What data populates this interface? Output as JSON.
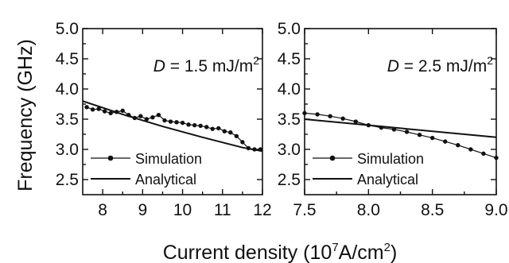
{
  "figure": {
    "ylabel": "Frequency (GHz)",
    "xlabel_main": "Current density (10",
    "xlabel_exp": "7",
    "xlabel_unit": "A/cm",
    "xlabel_exp2": "2",
    "xlabel_close": ")"
  },
  "chart_data": [
    {
      "type": "line",
      "annotation_italic": "D",
      "annotation_text": " = 1.5 mJ/m",
      "annotation_sup": "2",
      "xlim": [
        7.5,
        12
      ],
      "ylim": [
        2.25,
        5.0
      ],
      "xticks": [
        8,
        9,
        10,
        11,
        12
      ],
      "xtick_labels": [
        "8",
        "9",
        "10",
        "11",
        "12"
      ],
      "yticks": [
        2.5,
        3.0,
        3.5,
        4.0,
        4.5,
        5.0
      ],
      "ytick_labels": [
        "2.5",
        "3.0",
        "3.5",
        "4.0",
        "4.5",
        "5.0"
      ],
      "legend": [
        "Simulation",
        "Analytical"
      ],
      "legend_position": "bottom-left",
      "series": [
        {
          "name": "Simulation",
          "style": "dot-line",
          "x": [
            7.6,
            7.75,
            7.9,
            8.05,
            8.2,
            8.35,
            8.5,
            8.65,
            8.8,
            8.95,
            9.1,
            9.25,
            9.4,
            9.55,
            9.7,
            9.85,
            10.0,
            10.15,
            10.3,
            10.45,
            10.6,
            10.75,
            10.9,
            11.05,
            11.2,
            11.35,
            11.5,
            11.65,
            11.8,
            11.95
          ],
          "y": [
            3.7,
            3.66,
            3.67,
            3.63,
            3.6,
            3.62,
            3.64,
            3.57,
            3.52,
            3.55,
            3.5,
            3.53,
            3.57,
            3.48,
            3.46,
            3.45,
            3.44,
            3.41,
            3.4,
            3.39,
            3.37,
            3.34,
            3.35,
            3.3,
            3.28,
            3.22,
            3.12,
            3.02,
            3.0,
            3.0
          ]
        },
        {
          "name": "Analytical",
          "style": "line",
          "x": [
            7.5,
            8.5,
            9.5,
            10.5,
            11.5,
            12.0
          ],
          "y": [
            3.8,
            3.58,
            3.38,
            3.2,
            3.03,
            2.97
          ]
        }
      ]
    },
    {
      "type": "line",
      "annotation_italic": "D",
      "annotation_text": " = 2.5 mJ/m",
      "annotation_sup": "2",
      "xlim": [
        7.5,
        9.0
      ],
      "ylim": [
        2.25,
        5.0
      ],
      "xticks": [
        7.5,
        8.0,
        8.5,
        9.0
      ],
      "xtick_labels": [
        "7.5",
        "8.0",
        "8.5",
        "9.0"
      ],
      "yticks": [
        2.5,
        3.0,
        3.5,
        4.0,
        4.5,
        5.0
      ],
      "ytick_labels": [
        "2.5",
        "3.0",
        "3.5",
        "4.0",
        "4.5",
        "5.0"
      ],
      "legend": [
        "Simulation",
        "Analytical"
      ],
      "legend_position": "bottom-left",
      "series": [
        {
          "name": "Simulation",
          "style": "dot-line",
          "x": [
            7.5,
            7.6,
            7.7,
            7.8,
            7.9,
            8.0,
            8.1,
            8.2,
            8.3,
            8.4,
            8.5,
            8.6,
            8.7,
            8.8,
            8.9,
            9.0
          ],
          "y": [
            3.6,
            3.58,
            3.55,
            3.51,
            3.46,
            3.4,
            3.36,
            3.33,
            3.29,
            3.24,
            3.19,
            3.13,
            3.07,
            3.0,
            2.93,
            2.86
          ]
        },
        {
          "name": "Analytical",
          "style": "line",
          "x": [
            7.5,
            9.0
          ],
          "y": [
            3.5,
            3.2
          ]
        }
      ]
    }
  ]
}
